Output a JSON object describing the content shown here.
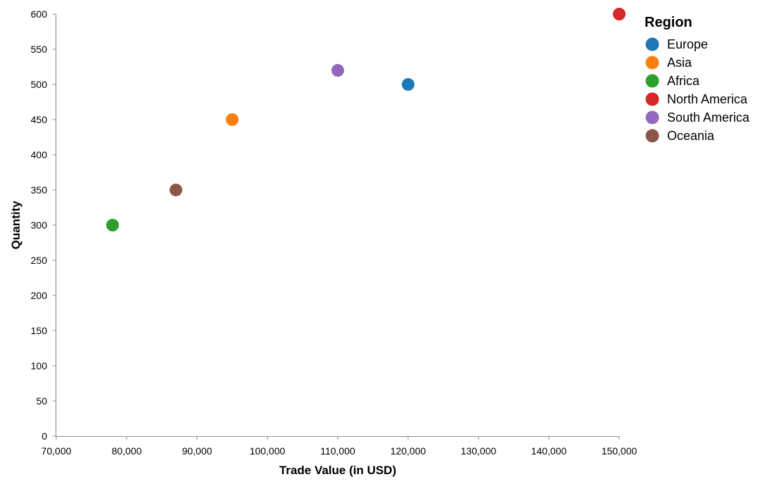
{
  "chart_data": {
    "type": "scatter",
    "xlabel": "Trade Value (in USD)",
    "ylabel": "Quantity",
    "xlim": [
      70000,
      150000
    ],
    "ylim": [
      0,
      600
    ],
    "x_ticks": [
      70000,
      80000,
      90000,
      100000,
      110000,
      120000,
      130000,
      140000,
      150000
    ],
    "x_tick_labels": [
      "70,000",
      "80,000",
      "90,000",
      "100,000",
      "110,000",
      "120,000",
      "130,000",
      "140,000",
      "150,000"
    ],
    "y_ticks": [
      0,
      50,
      100,
      150,
      200,
      250,
      300,
      350,
      400,
      450,
      500,
      550,
      600
    ],
    "y_tick_labels": [
      "0",
      "50",
      "100",
      "150",
      "200",
      "250",
      "300",
      "350",
      "400",
      "450",
      "500",
      "550",
      "600"
    ],
    "grid": false,
    "legend": {
      "title": "Region",
      "placement": "right",
      "entries": [
        {
          "label": "Europe",
          "color": "#1f77b4"
        },
        {
          "label": "Asia",
          "color": "#ff7f0e"
        },
        {
          "label": "Africa",
          "color": "#2ca02c"
        },
        {
          "label": "North America",
          "color": "#d62728"
        },
        {
          "label": "South America",
          "color": "#9467bd"
        },
        {
          "label": "Oceania",
          "color": "#8c564b"
        }
      ]
    },
    "points": [
      {
        "region": "Europe",
        "x": 120000,
        "y": 500,
        "color": "#1f77b4"
      },
      {
        "region": "Asia",
        "x": 95000,
        "y": 450,
        "color": "#ff7f0e"
      },
      {
        "region": "Africa",
        "x": 78000,
        "y": 300,
        "color": "#2ca02c"
      },
      {
        "region": "North America",
        "x": 150000,
        "y": 600,
        "color": "#d62728"
      },
      {
        "region": "South America",
        "x": 110000,
        "y": 520,
        "color": "#9467bd"
      },
      {
        "region": "Oceania",
        "x": 87000,
        "y": 350,
        "color": "#8c564b"
      }
    ]
  }
}
